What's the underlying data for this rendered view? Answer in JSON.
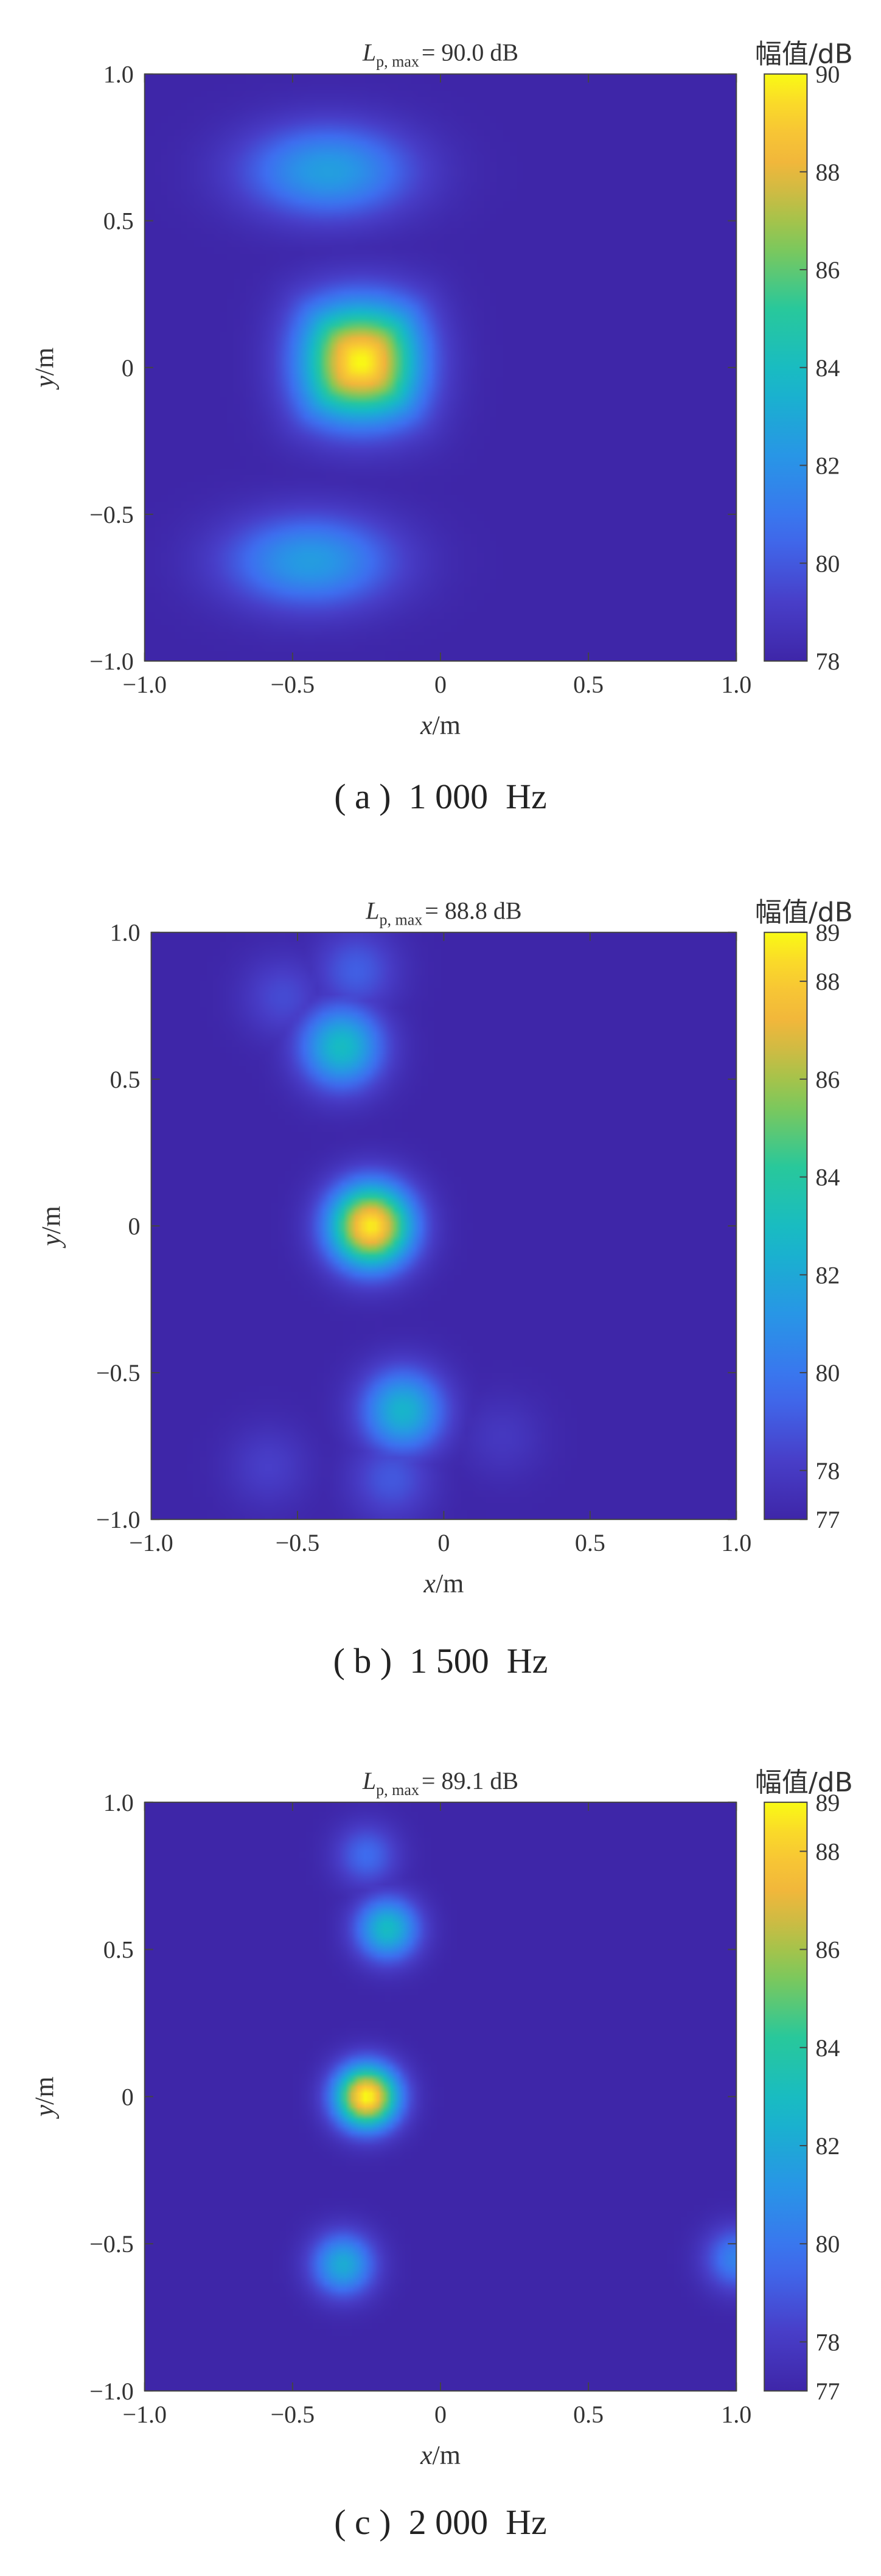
{
  "chart_data": [
    {
      "type": "heatmap",
      "title_var": "L",
      "title_sub": "p, max",
      "title_value": "= 90.0 dB",
      "xlabel_var": "x",
      "xlabel_unit": "/m",
      "ylabel_var": "y",
      "ylabel_unit": "/m",
      "xlim": [
        -1.0,
        1.0
      ],
      "ylim": [
        -1.0,
        1.0
      ],
      "xticks": [
        "−1.0",
        "−0.5",
        "0",
        "0.5",
        "1.0"
      ],
      "xtick_values": [
        -1.0,
        -0.5,
        0,
        0.5,
        1.0
      ],
      "yticks": [
        "1.0",
        "0.5",
        "0",
        "−0.5",
        "−1.0"
      ],
      "ytick_values": [
        1.0,
        0.5,
        0,
        -0.5,
        -1.0
      ],
      "colorbar_label": "幅值/dB",
      "colorbar_range": [
        78,
        90
      ],
      "colorbar_ticks": [
        90,
        88,
        86,
        84,
        82,
        80,
        78
      ],
      "caption": "( a )  1 000  Hz",
      "sources": [
        {
          "x": -0.27,
          "y": 0.02,
          "peak_db": 90.0
        },
        {
          "x": -0.38,
          "y": 0.67,
          "peak_db": 82.6
        },
        {
          "x": -0.44,
          "y": -0.66,
          "peak_db": 82.5
        }
      ]
    },
    {
      "type": "heatmap",
      "title_var": "L",
      "title_sub": "p, max",
      "title_value": "= 88.8 dB",
      "xlabel_var": "x",
      "xlabel_unit": "/m",
      "ylabel_var": "y",
      "ylabel_unit": "/m",
      "xlim": [
        -1.0,
        1.0
      ],
      "ylim": [
        -1.0,
        1.0
      ],
      "xticks": [
        "−1.0",
        "−0.5",
        "0",
        "0.5",
        "1.0"
      ],
      "xtick_values": [
        -1.0,
        -0.5,
        0,
        0.5,
        1.0
      ],
      "yticks": [
        "1.0",
        "0.5",
        "0",
        "−0.5",
        "−1.0"
      ],
      "ytick_values": [
        1.0,
        0.5,
        0,
        -0.5,
        -1.0
      ],
      "colorbar_label": "幅值/dB",
      "colorbar_range": [
        77,
        89
      ],
      "colorbar_ticks": [
        89,
        88,
        86,
        84,
        82,
        80,
        78,
        77
      ],
      "caption": "( b )  1 500  Hz",
      "sources": [
        {
          "x": -0.25,
          "y": 0.0,
          "peak_db": 88.8
        },
        {
          "x": -0.35,
          "y": 0.61,
          "peak_db": 83.0
        },
        {
          "x": -0.14,
          "y": -0.63,
          "peak_db": 82.6
        },
        {
          "x": -0.3,
          "y": 0.87,
          "peak_db": 79.2
        },
        {
          "x": -0.55,
          "y": 0.78,
          "peak_db": 78.6
        },
        {
          "x": -0.18,
          "y": -0.86,
          "peak_db": 79.0
        },
        {
          "x": -0.6,
          "y": -0.82,
          "peak_db": 78.2
        },
        {
          "x": 0.2,
          "y": -0.72,
          "peak_db": 77.9
        }
      ]
    },
    {
      "type": "heatmap",
      "title_var": "L",
      "title_sub": "p, max",
      "title_value": "= 89.1 dB",
      "xlabel_var": "x",
      "xlabel_unit": "/m",
      "ylabel_var": "y",
      "ylabel_unit": "/m",
      "xlim": [
        -1.0,
        1.0
      ],
      "ylim": [
        -1.0,
        1.0
      ],
      "xticks": [
        "−1.0",
        "−0.5",
        "0",
        "0.5",
        "1.0"
      ],
      "xtick_values": [
        -1.0,
        -0.5,
        0,
        0.5,
        1.0
      ],
      "yticks": [
        "1.0",
        "0.5",
        "0",
        "−0.5",
        "−1.0"
      ],
      "ytick_values": [
        1.0,
        0.5,
        0,
        -0.5,
        -1.0
      ],
      "colorbar_label": "幅值/dB",
      "colorbar_range": [
        77,
        89
      ],
      "colorbar_ticks": [
        89,
        88,
        86,
        84,
        82,
        80,
        78,
        77
      ],
      "caption": "( c )  2 000  Hz",
      "sources": [
        {
          "x": -0.25,
          "y": 0.0,
          "peak_db": 89.1
        },
        {
          "x": -0.18,
          "y": 0.57,
          "peak_db": 83.0
        },
        {
          "x": -0.33,
          "y": -0.57,
          "peak_db": 82.2
        },
        {
          "x": -0.25,
          "y": 0.82,
          "peak_db": 79.6
        },
        {
          "x": 1.0,
          "y": -0.55,
          "peak_db": 80.5
        }
      ]
    }
  ]
}
